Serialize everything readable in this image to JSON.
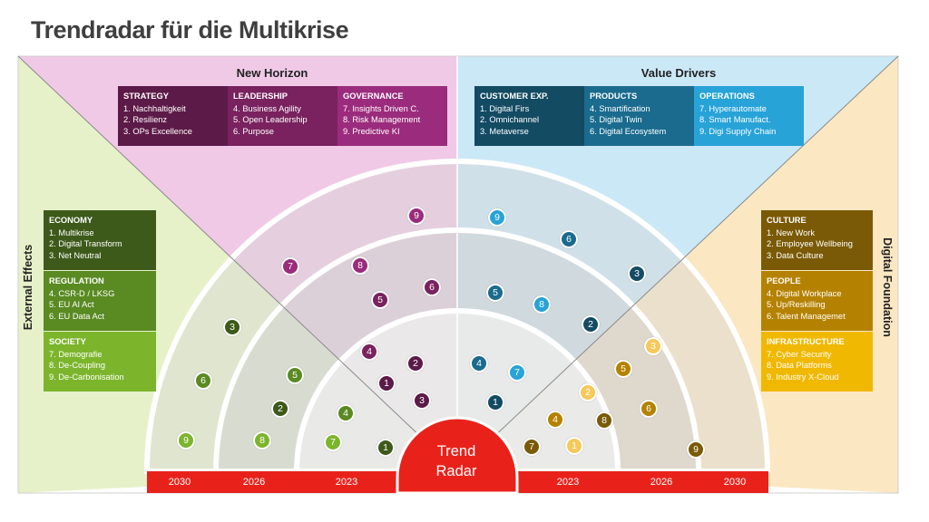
{
  "title": "Trendradar für die Multikrise",
  "center_label": [
    "Trend",
    "Radar"
  ],
  "sections": {
    "new_horizon": {
      "title": "New Horizon",
      "groups": [
        {
          "header": "STRATEGY",
          "color": "#5c1a48",
          "items": [
            "1. Nachhaltigkeit",
            "2. Resilienz",
            "3. OPs Excellence"
          ]
        },
        {
          "header": "LEADERSHIP",
          "color": "#79225f",
          "items": [
            "4. Business Agility",
            "5. Open Leadership",
            "6. Purpose"
          ]
        },
        {
          "header": "GOVERNANCE",
          "color": "#9b2b7c",
          "items": [
            "7. Insights Driven C.",
            "8. Risk Management",
            "9. Predictive KI"
          ]
        }
      ]
    },
    "value_drivers": {
      "title": "Value Drivers",
      "groups": [
        {
          "header": "CUSTOMER EXP.",
          "color": "#134b63",
          "items": [
            "1. Digital Firs",
            "2. Omnichannel",
            "3. Metaverse"
          ]
        },
        {
          "header": "PRODUCTS",
          "color": "#1a6b8e",
          "items": [
            "4. Smartification",
            "5. Digital Twin",
            "6. Digital Ecosystem"
          ]
        },
        {
          "header": "OPERATIONS",
          "color": "#27a3d8",
          "items": [
            "7.   Hyperautomate",
            "8.   Smart Manufact.",
            "9.   Digi Supply Chain"
          ]
        }
      ]
    },
    "external_effects": {
      "title": "External Effects",
      "groups": [
        {
          "header": "ECONOMY",
          "color": "#3d5a1a",
          "items": [
            "1. Multikrise",
            "2. Digital Transform",
            "3. Net Neutral"
          ]
        },
        {
          "header": "REGULATION",
          "color": "#5a8a22",
          "items": [
            "4. CSR-D / LKSG",
            "5. EU AI Act",
            "6. EU Data Act"
          ]
        },
        {
          "header": "SOCIETY",
          "color": "#7cb52c",
          "items": [
            "7.   Demografie",
            "8.   De-Coupling",
            "9.   De-Carbonisation"
          ]
        }
      ]
    },
    "digital_foundation": {
      "title": "Digital Foundation",
      "groups": [
        {
          "header": "CULTURE",
          "color": "#7a5a06",
          "items": [
            "1. New Work",
            "2. Employee Wellbeing",
            "3. Data Culture"
          ]
        },
        {
          "header": "PEOPLE",
          "color": "#b58200",
          "items": [
            "4. Digital Workplace",
            "5. Up/Reskilling",
            "6. Talent Managemet"
          ]
        },
        {
          "header": "INFRASTRUCTURE",
          "color": "#f0b800",
          "items": [
            "7. Cyber Security",
            "8. Data Platforms",
            "9. Industry X-Cloud"
          ]
        }
      ]
    }
  },
  "year_axis": {
    "left": [
      "2030",
      "2026",
      "2023"
    ],
    "right": [
      "2023",
      "2026",
      "2030"
    ]
  },
  "colors": {
    "bar": "#e8221b",
    "new_horizon_bg": "#f0c9e6",
    "value_drivers_bg": "#cbe8f6",
    "external_effects_bg": "#e6f1c9",
    "digital_foundation_bg": "#fbe7c2"
  },
  "dots": [
    {
      "n": "9",
      "color": "#9b2b7c"
    },
    {
      "n": "7",
      "color": "#9b2b7c"
    },
    {
      "n": "8",
      "color": "#9b2b7c"
    },
    {
      "n": "5",
      "color": "#79225f"
    },
    {
      "n": "6",
      "color": "#79225f"
    },
    {
      "n": "4",
      "color": "#79225f"
    },
    {
      "n": "2",
      "color": "#5c1a48"
    },
    {
      "n": "1",
      "color": "#5c1a48"
    },
    {
      "n": "3",
      "color": "#5c1a48"
    },
    {
      "n": "9",
      "color": "#27a3d8"
    },
    {
      "n": "6",
      "color": "#1a6b8e"
    },
    {
      "n": "3",
      "color": "#134b63"
    },
    {
      "n": "5",
      "color": "#1a6b8e"
    },
    {
      "n": "8",
      "color": "#27a3d8"
    },
    {
      "n": "2",
      "color": "#134b63"
    },
    {
      "n": "4",
      "color": "#1a6b8e"
    },
    {
      "n": "7",
      "color": "#27a3d8"
    },
    {
      "n": "1",
      "color": "#134b63"
    },
    {
      "n": "3",
      "color": "#3d5a1a"
    },
    {
      "n": "6",
      "color": "#5a8a22"
    },
    {
      "n": "5",
      "color": "#5a8a22"
    },
    {
      "n": "2",
      "color": "#3d5a1a"
    },
    {
      "n": "4",
      "color": "#5a8a22"
    },
    {
      "n": "9",
      "color": "#7cb52c"
    },
    {
      "n": "8",
      "color": "#7cb52c"
    },
    {
      "n": "7",
      "color": "#7cb52c"
    },
    {
      "n": "1",
      "color": "#3d5a1a"
    },
    {
      "n": "3",
      "color": "#f5c95a"
    },
    {
      "n": "5",
      "color": "#b58200"
    },
    {
      "n": "2",
      "color": "#f5c95a"
    },
    {
      "n": "6",
      "color": "#b58200"
    },
    {
      "n": "4",
      "color": "#b58200"
    },
    {
      "n": "8",
      "color": "#7a5a06"
    },
    {
      "n": "1",
      "color": "#f5c95a"
    },
    {
      "n": "7",
      "color": "#7a5a06"
    },
    {
      "n": "9",
      "color": "#7a5a06"
    }
  ]
}
